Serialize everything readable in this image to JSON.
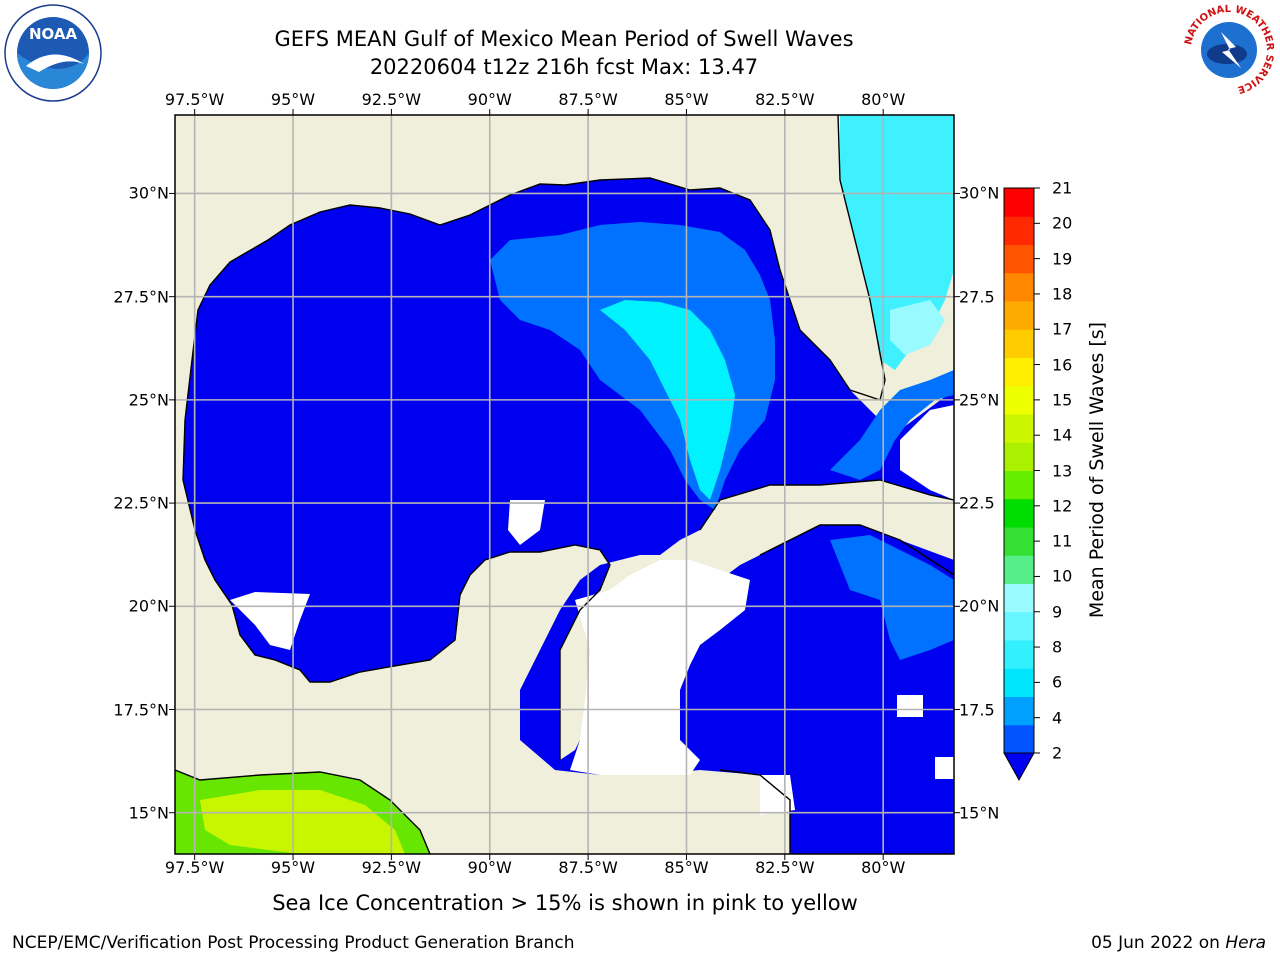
{
  "title": {
    "line1": "GEFS MEAN Gulf of Mexico Mean Period of Swell Waves",
    "line2": "20220604 t12z 216h fcst   Max: 13.47"
  },
  "axes": {
    "lon_labels": [
      "97.5°W",
      "95°W",
      "92.5°W",
      "90°W",
      "87.5°W",
      "85°W",
      "82.5°W",
      "80°W"
    ],
    "lon_values": [
      -97.5,
      -95,
      -92.5,
      -90,
      -87.5,
      -85,
      -82.5,
      -80
    ],
    "lat_labels_left": [
      "30°N",
      "27.5°N",
      "25°N",
      "22.5°N",
      "20°N",
      "17.5°N",
      "15°N"
    ],
    "lat_labels_right": [
      "30°N",
      "27.5",
      "25°N",
      "22.5",
      "20°N",
      "17.5",
      "15°N"
    ],
    "lat_values": [
      30,
      27.5,
      25,
      22.5,
      20,
      17.5,
      15
    ],
    "lon_range": [
      -98,
      -78.2
    ],
    "lat_range": [
      14,
      31.9
    ]
  },
  "colorbar": {
    "label": "Mean Period of Swell Waves [s]",
    "ticks": [
      "21",
      "20",
      "19",
      "18",
      "17",
      "16",
      "15",
      "14",
      "13",
      "12",
      "11",
      "10",
      "9",
      "8",
      "6",
      "4",
      "2"
    ],
    "colors": [
      "#0055ff",
      "#00a0ff",
      "#00e6ff",
      "#33f0ff",
      "#66f6ff",
      "#99fbff",
      "#55ee88",
      "#33e033",
      "#00dd00",
      "#66ee00",
      "#aaf000",
      "#ccf500",
      "#eeff00",
      "#ffee00",
      "#ffcc00",
      "#ffaa00",
      "#ff8800",
      "#ff5500",
      "#ff2a00",
      "#ff0000"
    ]
  },
  "map": {
    "colors": {
      "ocean_blue": "#0000f0",
      "mid_blue": "#0072ff",
      "cyan": "#00f2ff",
      "light_cyan": "#3ff0ff",
      "pale_cyan": "#99fbff",
      "land": "#efefdc",
      "green": "#66e600",
      "lime": "#c8f500"
    }
  },
  "note": "Sea Ice Concentration > 15% is shown in pink to yellow",
  "footer": {
    "left": "NCEP/EMC/Verification Post Processing Product Generation Branch",
    "right_date": "05 Jun 2022 on ",
    "right_host": "Hera"
  },
  "logos": {
    "left_text": "NOAA",
    "right_ring": "NATIONAL WEATHER SERVICE"
  }
}
